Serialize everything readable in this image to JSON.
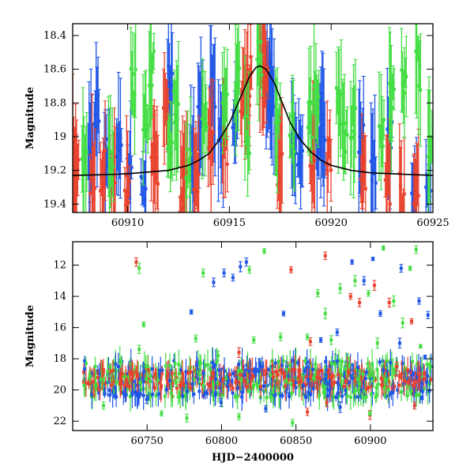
{
  "chart_data": [
    {
      "type": "scatter",
      "title": "",
      "xlabel": "",
      "ylabel": "Magnitude",
      "xlim": [
        60907.3,
        60925.0
      ],
      "ylim": [
        19.45,
        18.33
      ],
      "y_inverted": true,
      "xticks": [
        60910,
        60915,
        60920,
        60925
      ],
      "yticks": [
        18.4,
        18.6,
        18.8,
        19,
        19.2,
        19.4
      ],
      "series": [
        {
          "color": "#1f55e6",
          "points": [
            [
              60908.2,
              19.05
            ],
            [
              60908.5,
              18.85
            ],
            [
              60909.0,
              19.1
            ],
            [
              60909.6,
              19.0
            ],
            [
              60910.1,
              19.2
            ],
            [
              60910.8,
              19.3
            ],
            [
              60912.1,
              18.7
            ],
            [
              60913.2,
              19.1
            ],
            [
              60913.6,
              18.9
            ],
            [
              60914.2,
              18.75
            ],
            [
              60914.6,
              19.0
            ],
            [
              60915.3,
              18.9
            ],
            [
              60916.9,
              18.65
            ],
            [
              60917.0,
              18.75
            ],
            [
              60917.1,
              18.8
            ],
            [
              60918.2,
              19.05
            ],
            [
              60918.5,
              19.1
            ],
            [
              60919.4,
              19.0
            ],
            [
              60919.6,
              18.95
            ],
            [
              60921.5,
              19.05
            ],
            [
              60922.1,
              19.2
            ],
            [
              60922.9,
              19.0
            ],
            [
              60924.1,
              19.4
            ],
            [
              60924.8,
              19.3
            ]
          ]
        },
        {
          "color": "#e8432e",
          "points": [
            [
              60907.4,
              19.15
            ],
            [
              60907.5,
              19.25
            ],
            [
              60908.3,
              19.25
            ],
            [
              60908.8,
              19.2
            ],
            [
              60909.3,
              19.2
            ],
            [
              60910.0,
              19.35
            ],
            [
              60911.3,
              19.1
            ],
            [
              60911.4,
              19.2
            ],
            [
              60911.9,
              18.9
            ],
            [
              60912.7,
              19.35
            ],
            [
              60912.8,
              19.2
            ],
            [
              60913.4,
              19.25
            ],
            [
              60914.1,
              18.95
            ],
            [
              60914.8,
              19.1
            ],
            [
              60915.7,
              18.75
            ],
            [
              60915.9,
              18.7
            ],
            [
              60916.0,
              18.65
            ],
            [
              60916.6,
              18.62
            ],
            [
              60916.7,
              18.6
            ],
            [
              60916.8,
              18.65
            ],
            [
              60917.5,
              19.2
            ],
            [
              60919.1,
              19.1
            ],
            [
              60919.9,
              19.1
            ],
            [
              60921.6,
              19.2
            ],
            [
              60922.8,
              19.3
            ],
            [
              60923.5,
              19.3
            ],
            [
              60924.2,
              19.3
            ]
          ]
        },
        {
          "color": "#44dd44",
          "points": [
            [
              60907.9,
              19.1
            ],
            [
              60909.2,
              19.15
            ],
            [
              60910.3,
              18.7
            ],
            [
              60910.9,
              18.85
            ],
            [
              60911.2,
              18.6
            ],
            [
              60912.1,
              19.0
            ],
            [
              60912.4,
              18.8
            ],
            [
              60913.0,
              19.2
            ],
            [
              60913.8,
              18.95
            ],
            [
              60914.8,
              18.8
            ],
            [
              60915.4,
              18.7
            ],
            [
              60915.9,
              19.0
            ],
            [
              60916.5,
              18.55
            ],
            [
              60917.4,
              18.9
            ],
            [
              60918.1,
              19.0
            ],
            [
              60919.0,
              18.9
            ],
            [
              60919.3,
              18.75
            ],
            [
              60920.4,
              18.8
            ],
            [
              60920.7,
              19.0
            ],
            [
              60921.1,
              18.9
            ],
            [
              60922.5,
              18.95
            ],
            [
              60923.0,
              18.8
            ],
            [
              60923.6,
              18.7
            ],
            [
              60924.3,
              18.6
            ],
            [
              60924.9,
              19.0
            ]
          ]
        },
        {
          "color": "#000000",
          "line": true,
          "points": [
            [
              60907.3,
              19.23
            ],
            [
              60909.0,
              19.225
            ],
            [
              60910.0,
              19.22
            ],
            [
              60911.0,
              19.21
            ],
            [
              60912.0,
              19.2
            ],
            [
              60913.0,
              19.17
            ],
            [
              60913.5,
              19.14
            ],
            [
              60914.0,
              19.1
            ],
            [
              60914.5,
              19.02
            ],
            [
              60915.0,
              18.92
            ],
            [
              60915.5,
              18.78
            ],
            [
              60916.0,
              18.64
            ],
            [
              60916.3,
              18.59
            ],
            [
              60916.5,
              18.58
            ],
            [
              60916.8,
              18.6
            ],
            [
              60917.2,
              18.68
            ],
            [
              60917.6,
              18.8
            ],
            [
              60918.0,
              18.92
            ],
            [
              60918.5,
              19.02
            ],
            [
              60919.0,
              19.09
            ],
            [
              60919.5,
              19.14
            ],
            [
              60920.0,
              19.17
            ],
            [
              60921.0,
              19.2
            ],
            [
              60922.0,
              19.215
            ],
            [
              60923.0,
              19.22
            ],
            [
              60925.0,
              19.23
            ]
          ]
        }
      ]
    },
    {
      "type": "scatter",
      "title": "",
      "xlabel": "HJD−2400000",
      "ylabel": "Magnitude",
      "xlim": [
        60700,
        60942
      ],
      "ylim": [
        22.6,
        10.5
      ],
      "y_inverted": true,
      "xticks": [
        60750,
        60800,
        60850,
        60900
      ],
      "yticks": [
        12,
        14,
        16,
        18,
        20,
        22
      ],
      "series": [
        {
          "color": "#e8432e",
          "name": "",
          "points": [
            [
              60743,
              11.8
            ],
            [
              60847,
              12.3
            ],
            [
              60870,
              11.4
            ],
            [
              60903,
              13.3
            ],
            [
              60893,
              14.4
            ],
            [
              60928,
              15.6
            ],
            [
              60887,
              14.0
            ],
            [
              60913,
              14.4
            ],
            [
              60812,
              17.6
            ],
            [
              60860,
              16.9
            ],
            [
              60930,
              21.0
            ],
            [
              60918,
              18.5
            ],
            [
              60871,
              20.8
            ],
            [
              60858,
              21.4
            ],
            [
              60900,
              21.6
            ]
          ]
        },
        {
          "color": "#1f55e6",
          "name": "",
          "points": [
            [
              60802,
              12.5
            ],
            [
              60813,
              12.1
            ],
            [
              60817,
              11.8
            ],
            [
              60808,
              12.8
            ],
            [
              60795,
              13.1
            ],
            [
              60780,
              15.0
            ],
            [
              60842,
              15.1
            ],
            [
              60888,
              11.8
            ],
            [
              60896,
              13.0
            ],
            [
              60902,
              11.6
            ],
            [
              60907,
              15.1
            ],
            [
              60921,
              12.2
            ],
            [
              60933,
              14.3
            ],
            [
              60939,
              15.2
            ],
            [
              60878,
              16.3
            ],
            [
              60867,
              16.8
            ],
            [
              60920,
              17.0
            ],
            [
              60937,
              17.9
            ],
            [
              60826,
              18.3
            ],
            [
              60856,
              18.8
            ],
            [
              60800,
              20.8
            ],
            [
              60830,
              21.2
            ],
            [
              60880,
              21.1
            ],
            [
              60935,
              20.5
            ],
            [
              60750,
              20.6
            ]
          ]
        },
        {
          "color": "#44dd44",
          "name": "",
          "points": [
            [
              60745,
              12.2
            ],
            [
              60788,
              12.5
            ],
            [
              60819,
              12.3
            ],
            [
              60829,
              11.1
            ],
            [
              60865,
              13.8
            ],
            [
              60870,
              15.1
            ],
            [
              60880,
              13.5
            ],
            [
              60890,
              13.0
            ],
            [
              60899,
              13.8
            ],
            [
              60909,
              10.9
            ],
            [
              60916,
              14.3
            ],
            [
              60922,
              15.7
            ],
            [
              60927,
              12.2
            ],
            [
              60931,
              11.0
            ],
            [
              60748,
              15.8
            ],
            [
              60745,
              17.4
            ],
            [
              60770,
              19.5
            ],
            [
              60783,
              16.7
            ],
            [
              60798,
              17.8
            ],
            [
              60822,
              16.8
            ],
            [
              60840,
              16.6
            ],
            [
              60858,
              16.6
            ],
            [
              60874,
              16.8
            ],
            [
              60905,
              17.0
            ],
            [
              60934,
              17.2
            ],
            [
              60721,
              21.0
            ],
            [
              60760,
              21.5
            ],
            [
              60777,
              21.8
            ],
            [
              60812,
              21.7
            ],
            [
              60848,
              22.1
            ],
            [
              60900,
              21.5
            ]
          ]
        }
      ],
      "band": {
        "center_mag": 19.3,
        "xrange": [
          60707,
          60941
        ]
      }
    }
  ]
}
